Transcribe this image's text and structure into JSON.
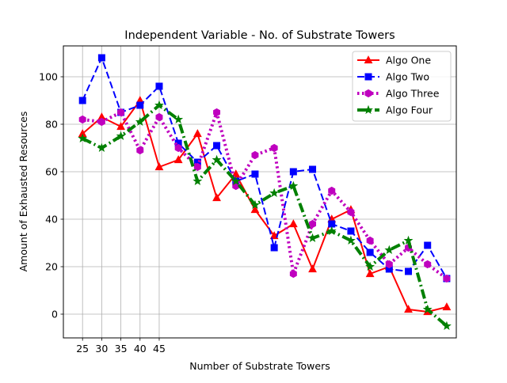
{
  "chart_data": {
    "type": "line",
    "title": "Independent Variable - No. of Substrate Towers",
    "xlabel": "Number of Substrate Towers",
    "ylabel": "Amount of Exhausted Resources",
    "xlim": [
      0,
      20.5
    ],
    "ylim": [
      -10,
      113
    ],
    "x_tick_labels": [
      "25",
      "30",
      "35",
      "40",
      "45"
    ],
    "y_ticks": [
      0,
      20,
      40,
      60,
      80,
      100
    ],
    "grid": true,
    "legend_position": "top-right",
    "series": [
      {
        "name": "Algo One",
        "color": "#ff0000",
        "line_style": "solid",
        "marker": "triangle",
        "values": [
          76,
          83,
          79,
          90,
          62,
          65,
          76,
          49,
          59,
          44,
          33,
          38,
          19,
          40,
          44,
          17,
          20,
          2,
          1,
          3
        ]
      },
      {
        "name": "Algo Two",
        "color": "#0000ff",
        "line_style": "dashed",
        "marker": "square",
        "values": [
          90,
          108,
          85,
          88,
          96,
          72,
          64,
          71,
          56,
          59,
          28,
          60,
          61,
          38,
          35,
          26,
          19,
          18,
          29,
          15
        ]
      },
      {
        "name": "Algo Three",
        "color": "#bf00bf",
        "line_style": "dotted",
        "marker": "hexagon",
        "values": [
          82,
          81,
          85,
          69,
          83,
          70,
          62,
          85,
          54,
          67,
          70,
          17,
          38,
          52,
          43,
          31,
          21,
          28,
          21,
          15
        ]
      },
      {
        "name": "Algo Four",
        "color": "#008000",
        "line_style": "dashdot",
        "marker": "star",
        "values": [
          74,
          70,
          75,
          81,
          88,
          82,
          56,
          65,
          56,
          46,
          51,
          54,
          32,
          35,
          31,
          20,
          27,
          31,
          2,
          -5
        ]
      }
    ]
  }
}
